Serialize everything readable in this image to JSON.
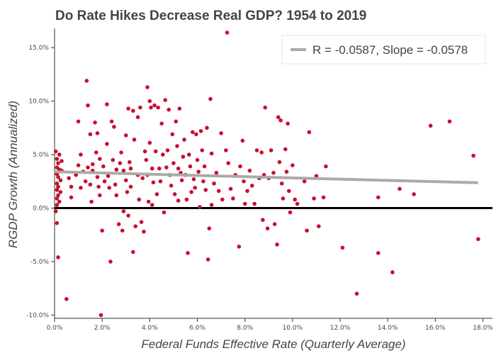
{
  "chart_data": {
    "type": "scatter",
    "title": "Do Rate Hikes Decrease Real GDP? 1954 to 2019",
    "xlabel": "Federal Funds Effective Rate (Quarterly Average)",
    "ylabel": "RGDP Growth (Annualized)",
    "xlim": [
      0,
      18.4
    ],
    "ylim": [
      -10.3,
      16.8
    ],
    "x_ticks": [
      0,
      2,
      4,
      6,
      8,
      10,
      12,
      14,
      16,
      18
    ],
    "x_tick_labels": [
      "0.0%",
      "2.0%",
      "4.0%",
      "6.0%",
      "8.0%",
      "10.0%",
      "12.0%",
      "14.0%",
      "16.0%",
      "18.0%"
    ],
    "y_ticks": [
      -10,
      -5,
      0,
      5,
      10,
      15
    ],
    "y_tick_labels": [
      "-10.0%",
      "-5.0%",
      "0.0%",
      "5.0%",
      "10.0%",
      "15.0%"
    ],
    "grid": false,
    "legend_position": "top-right",
    "point_color": "#c8102e",
    "fit_color": "#aaaaaa",
    "zero_line_color": "#000000",
    "series": [
      {
        "name": "",
        "points": [
          [
            0.05,
            5.3
          ],
          [
            0.1,
            4.6
          ],
          [
            0.1,
            3.8
          ],
          [
            0.1,
            3.2
          ],
          [
            0.1,
            2.3
          ],
          [
            0.1,
            1.7
          ],
          [
            0.1,
            0.9
          ],
          [
            0.1,
            0.3
          ],
          [
            0.05,
            -0.3
          ],
          [
            0.1,
            -1.4
          ],
          [
            0.15,
            4.2
          ],
          [
            0.15,
            2.9
          ],
          [
            0.15,
            2.0
          ],
          [
            0.15,
            1.2
          ],
          [
            0.2,
            5.0
          ],
          [
            0.2,
            3.6
          ],
          [
            0.2,
            0.6
          ],
          [
            0.25,
            2.6
          ],
          [
            0.25,
            1.5
          ],
          [
            0.3,
            3.5
          ],
          [
            0.3,
            4.4
          ],
          [
            0.15,
            -4.6
          ],
          [
            0.5,
            -8.5
          ],
          [
            0.6,
            2.8
          ],
          [
            0.7,
            2.0
          ],
          [
            0.7,
            1.0
          ],
          [
            0.9,
            3.1
          ],
          [
            1.0,
            8.1
          ],
          [
            1.0,
            4.0
          ],
          [
            1.1,
            5.0
          ],
          [
            1.1,
            1.9
          ],
          [
            1.2,
            3.4
          ],
          [
            1.3,
            2.5
          ],
          [
            1.35,
            11.9
          ],
          [
            1.4,
            9.6
          ],
          [
            1.4,
            3.8
          ],
          [
            1.5,
            6.9
          ],
          [
            1.5,
            2.2
          ],
          [
            1.55,
            0.6
          ],
          [
            1.6,
            4.1
          ],
          [
            1.6,
            3.5
          ],
          [
            1.7,
            8.0
          ],
          [
            1.75,
            5.2
          ],
          [
            1.8,
            7.0
          ],
          [
            1.8,
            2.9
          ],
          [
            1.85,
            2.0
          ],
          [
            1.9,
            4.6
          ],
          [
            1.9,
            1.2
          ],
          [
            1.95,
            -10.0
          ],
          [
            2.0,
            -2.1
          ],
          [
            2.05,
            3.9
          ],
          [
            2.1,
            2.5
          ],
          [
            2.2,
            9.7
          ],
          [
            2.2,
            6.0
          ],
          [
            2.25,
            3.0
          ],
          [
            2.3,
            1.9
          ],
          [
            2.35,
            -5.0
          ],
          [
            2.4,
            8.1
          ],
          [
            2.45,
            4.5
          ],
          [
            2.5,
            7.6
          ],
          [
            2.55,
            2.2
          ],
          [
            2.6,
            3.6
          ],
          [
            2.6,
            1.2
          ],
          [
            2.7,
            -1.5
          ],
          [
            2.75,
            4.2
          ],
          [
            2.8,
            5.2
          ],
          [
            2.85,
            -2.1
          ],
          [
            2.9,
            3.5
          ],
          [
            2.9,
            -0.3
          ],
          [
            3.0,
            6.8
          ],
          [
            3.0,
            2.6
          ],
          [
            3.05,
            1.5
          ],
          [
            3.1,
            9.3
          ],
          [
            3.1,
            -0.7
          ],
          [
            3.15,
            4.3
          ],
          [
            3.2,
            3.7
          ],
          [
            3.2,
            2.0
          ],
          [
            3.3,
            9.1
          ],
          [
            3.3,
            -4.1
          ],
          [
            3.35,
            6.4
          ],
          [
            3.4,
            -1.7
          ],
          [
            3.5,
            8.5
          ],
          [
            3.5,
            3.1
          ],
          [
            3.55,
            0.8
          ],
          [
            3.6,
            9.4
          ],
          [
            3.65,
            -1.3
          ],
          [
            3.7,
            2.8
          ],
          [
            3.75,
            -2.2
          ],
          [
            3.8,
            5.3
          ],
          [
            3.85,
            4.5
          ],
          [
            3.9,
            3.1
          ],
          [
            3.9,
            11.3
          ],
          [
            3.95,
            0.6
          ],
          [
            4.0,
            10.0
          ],
          [
            4.0,
            6.1
          ],
          [
            4.05,
            9.4
          ],
          [
            4.1,
            3.7
          ],
          [
            4.1,
            0.3
          ],
          [
            4.15,
            2.4
          ],
          [
            4.2,
            9.6
          ],
          [
            4.25,
            5.3
          ],
          [
            4.3,
            1.3
          ],
          [
            4.35,
            9.4
          ],
          [
            4.4,
            3.7
          ],
          [
            4.45,
            2.5
          ],
          [
            4.5,
            7.9
          ],
          [
            4.55,
            5.0
          ],
          [
            4.6,
            -0.4
          ],
          [
            4.65,
            10.1
          ],
          [
            4.7,
            3.8
          ],
          [
            4.75,
            5.4
          ],
          [
            4.8,
            9.2
          ],
          [
            4.85,
            3.1
          ],
          [
            4.9,
            2.1
          ],
          [
            4.95,
            6.9
          ],
          [
            5.0,
            4.2
          ],
          [
            5.05,
            1.3
          ],
          [
            5.1,
            8.1
          ],
          [
            5.15,
            5.8
          ],
          [
            5.2,
            3.7
          ],
          [
            5.2,
            0.7
          ],
          [
            5.25,
            9.3
          ],
          [
            5.3,
            3.3
          ],
          [
            5.35,
            2.6
          ],
          [
            5.4,
            4.8
          ],
          [
            5.45,
            6.4
          ],
          [
            5.5,
            3.1
          ],
          [
            5.55,
            0.8
          ],
          [
            5.6,
            -4.2
          ],
          [
            5.65,
            5.0
          ],
          [
            5.7,
            3.9
          ],
          [
            5.75,
            1.5
          ],
          [
            5.8,
            7.1
          ],
          [
            5.85,
            2.7
          ],
          [
            5.9,
            1.9
          ],
          [
            5.95,
            6.9
          ],
          [
            6.0,
            4.5
          ],
          [
            6.05,
            3.4
          ],
          [
            6.1,
            0.1
          ],
          [
            6.15,
            7.2
          ],
          [
            6.2,
            5.4
          ],
          [
            6.25,
            2.5
          ],
          [
            6.3,
            3.9
          ],
          [
            6.35,
            1.7
          ],
          [
            6.4,
            7.5
          ],
          [
            6.45,
            -4.8
          ],
          [
            6.5,
            -1.9
          ],
          [
            6.55,
            10.2
          ],
          [
            6.6,
            5.1
          ],
          [
            6.6,
            0.3
          ],
          [
            6.7,
            2.3
          ],
          [
            6.8,
            3.3
          ],
          [
            6.9,
            1.6
          ],
          [
            7.0,
            7.0
          ],
          [
            7.05,
            0.8
          ],
          [
            7.2,
            5.4
          ],
          [
            7.25,
            16.4
          ],
          [
            7.3,
            4.2
          ],
          [
            7.4,
            1.8
          ],
          [
            7.5,
            0.9
          ],
          [
            7.6,
            3.1
          ],
          [
            7.75,
            -3.6
          ],
          [
            7.8,
            3.9
          ],
          [
            7.9,
            6.3
          ],
          [
            7.95,
            2.5
          ],
          [
            8.0,
            0.4
          ],
          [
            8.1,
            1.6
          ],
          [
            8.2,
            3.5
          ],
          [
            8.3,
            2.1
          ],
          [
            8.4,
            0.4
          ],
          [
            8.5,
            5.4
          ],
          [
            8.6,
            2.8
          ],
          [
            8.7,
            5.2
          ],
          [
            8.75,
            -1.1
          ],
          [
            8.8,
            3.1
          ],
          [
            8.85,
            9.4
          ],
          [
            8.95,
            -1.9
          ],
          [
            9.0,
            2.8
          ],
          [
            9.1,
            5.4
          ],
          [
            9.2,
            3.3
          ],
          [
            9.25,
            -1.5
          ],
          [
            9.35,
            -3.4
          ],
          [
            9.4,
            8.5
          ],
          [
            9.45,
            4.3
          ],
          [
            9.5,
            8.2
          ],
          [
            9.55,
            2.3
          ],
          [
            9.6,
            0.9
          ],
          [
            9.7,
            5.5
          ],
          [
            9.75,
            3.4
          ],
          [
            9.8,
            7.9
          ],
          [
            9.85,
            1.6
          ],
          [
            9.9,
            -0.4
          ],
          [
            10.0,
            4.0
          ],
          [
            10.1,
            0.8
          ],
          [
            10.2,
            0.4
          ],
          [
            10.5,
            2.5
          ],
          [
            10.6,
            -2.1
          ],
          [
            10.7,
            7.1
          ],
          [
            10.9,
            0.9
          ],
          [
            11.0,
            3.0
          ],
          [
            11.1,
            -1.7
          ],
          [
            11.3,
            1.0
          ],
          [
            11.4,
            3.9
          ],
          [
            12.1,
            -3.7
          ],
          [
            12.7,
            -8.0
          ],
          [
            13.6,
            -4.2
          ],
          [
            13.6,
            1.0
          ],
          [
            14.2,
            -6.0
          ],
          [
            14.5,
            1.8
          ],
          [
            15.1,
            1.3
          ],
          [
            15.8,
            7.7
          ],
          [
            16.6,
            8.1
          ],
          [
            17.6,
            4.9
          ],
          [
            17.8,
            -2.9
          ]
        ]
      }
    ],
    "fit_line": {
      "label": "R = -0.0587, Slope = -0.0578",
      "x": [
        0,
        17.8
      ],
      "y": [
        3.4,
        2.37
      ]
    }
  }
}
